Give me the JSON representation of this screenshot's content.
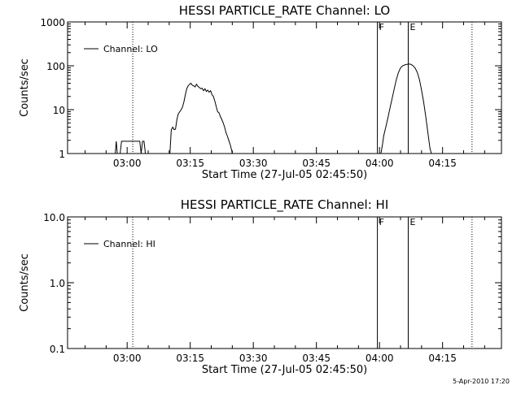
{
  "footer": {
    "timestamp": "5-Apr-2010 17:20"
  },
  "chart_data": [
    {
      "type": "line",
      "title": "HESSI PARTICLE_RATE Channel: LO",
      "xlabel": "Start Time (27-Jul-05 02:45:50)",
      "ylabel": "Counts/sec",
      "yscale": "log",
      "ylim": [
        1,
        1000
      ],
      "xlim": [
        "02:45:50",
        "04:29:00"
      ],
      "x_ticks": [
        "03:00",
        "03:15",
        "03:30",
        "03:45",
        "04:00",
        "04:15"
      ],
      "y_ticks": [
        "1",
        "10",
        "100",
        "1000"
      ],
      "legend": {
        "label": "Channel: LO",
        "position": "top-left"
      },
      "markers": [
        {
          "time": "03:01:20",
          "style": "dotted",
          "label": ""
        },
        {
          "time": "03:59:30",
          "style": "solid",
          "label": "F"
        },
        {
          "time": "04:06:50",
          "style": "solid",
          "label": "E"
        },
        {
          "time": "04:22:00",
          "style": "dotted",
          "label": ""
        }
      ],
      "series": [
        {
          "x": [
            "02:57:10",
            "02:57:25",
            "02:57:40",
            "02:58:00",
            "02:58:20",
            "02:58:40",
            "03:02:40",
            "03:03:00",
            "03:03:20",
            "03:03:40",
            "03:04:00",
            "03:04:20",
            "03:04:40",
            "03:10:10",
            "03:10:30",
            "03:10:50",
            "03:11:10",
            "03:11:30",
            "03:11:50",
            "03:12:10",
            "03:12:30",
            "03:12:50",
            "03:13:10",
            "03:13:30",
            "03:13:50",
            "03:14:10",
            "03:14:30",
            "03:14:50",
            "03:15:10",
            "03:15:30",
            "03:15:50",
            "03:16:10",
            "03:16:30",
            "03:16:50",
            "03:17:10",
            "03:17:30",
            "03:17:50",
            "03:18:10",
            "03:18:30",
            "03:18:50",
            "03:19:10",
            "03:19:30",
            "03:19:50",
            "03:20:10",
            "03:20:30",
            "03:20:50",
            "03:21:10",
            "03:21:30",
            "03:21:50",
            "03:22:10",
            "03:22:30",
            "03:22:50",
            "03:23:10",
            "03:23:30",
            "03:23:50",
            "03:24:10",
            "03:24:30",
            "03:24:50",
            "03:25:00",
            "04:00:20",
            "04:00:40",
            "04:01:00",
            "04:01:30",
            "04:02:00",
            "04:02:30",
            "04:03:00",
            "04:03:30",
            "04:04:00",
            "04:04:30",
            "04:05:00",
            "04:05:30",
            "04:06:00",
            "04:06:30",
            "04:07:00",
            "04:07:30",
            "04:08:00",
            "04:08:30",
            "04:09:00",
            "04:09:30",
            "04:10:00",
            "04:10:30",
            "04:11:00",
            "04:11:30",
            "04:12:00",
            "04:12:20"
          ],
          "y": [
            1,
            1.9,
            1,
            0.8,
            1,
            1.9,
            1.9,
            1.9,
            1,
            1.9,
            1.9,
            1,
            0.9,
            1,
            3.5,
            4,
            3.5,
            3.6,
            6,
            8,
            9,
            10,
            11.5,
            15,
            22,
            30,
            35,
            38,
            40,
            36,
            35,
            33,
            38,
            34,
            32,
            30,
            31,
            27,
            30,
            26,
            28,
            25,
            27,
            22,
            20,
            16,
            12,
            9,
            8.5,
            7,
            6,
            5,
            4,
            3,
            2.5,
            2,
            1.6,
            1.2,
            1,
            1,
            1.5,
            2.5,
            4,
            6.5,
            11,
            18,
            30,
            48,
            70,
            90,
            100,
            105,
            108,
            110,
            108,
            100,
            88,
            70,
            48,
            28,
            15,
            7,
            3,
            1.3,
            1
          ]
        }
      ]
    },
    {
      "type": "line",
      "title": "HESSI PARTICLE_RATE Channel: HI",
      "xlabel": "Start Time (27-Jul-05 02:45:50)",
      "ylabel": "Counts/sec",
      "yscale": "log",
      "ylim": [
        0.1,
        10
      ],
      "xlim": [
        "02:45:50",
        "04:29:00"
      ],
      "x_ticks": [
        "03:00",
        "03:15",
        "03:30",
        "03:45",
        "04:00",
        "04:15"
      ],
      "y_ticks": [
        "0.1",
        "1.0",
        "10.0"
      ],
      "legend": {
        "label": "Channel: HI",
        "position": "top-left"
      },
      "markers": [
        {
          "time": "03:01:20",
          "style": "dotted",
          "label": ""
        },
        {
          "time": "03:59:30",
          "style": "solid",
          "label": "F"
        },
        {
          "time": "04:06:50",
          "style": "solid",
          "label": "E"
        },
        {
          "time": "04:22:00",
          "style": "dotted",
          "label": ""
        }
      ],
      "series": [
        {
          "x": [],
          "y": []
        }
      ]
    }
  ]
}
